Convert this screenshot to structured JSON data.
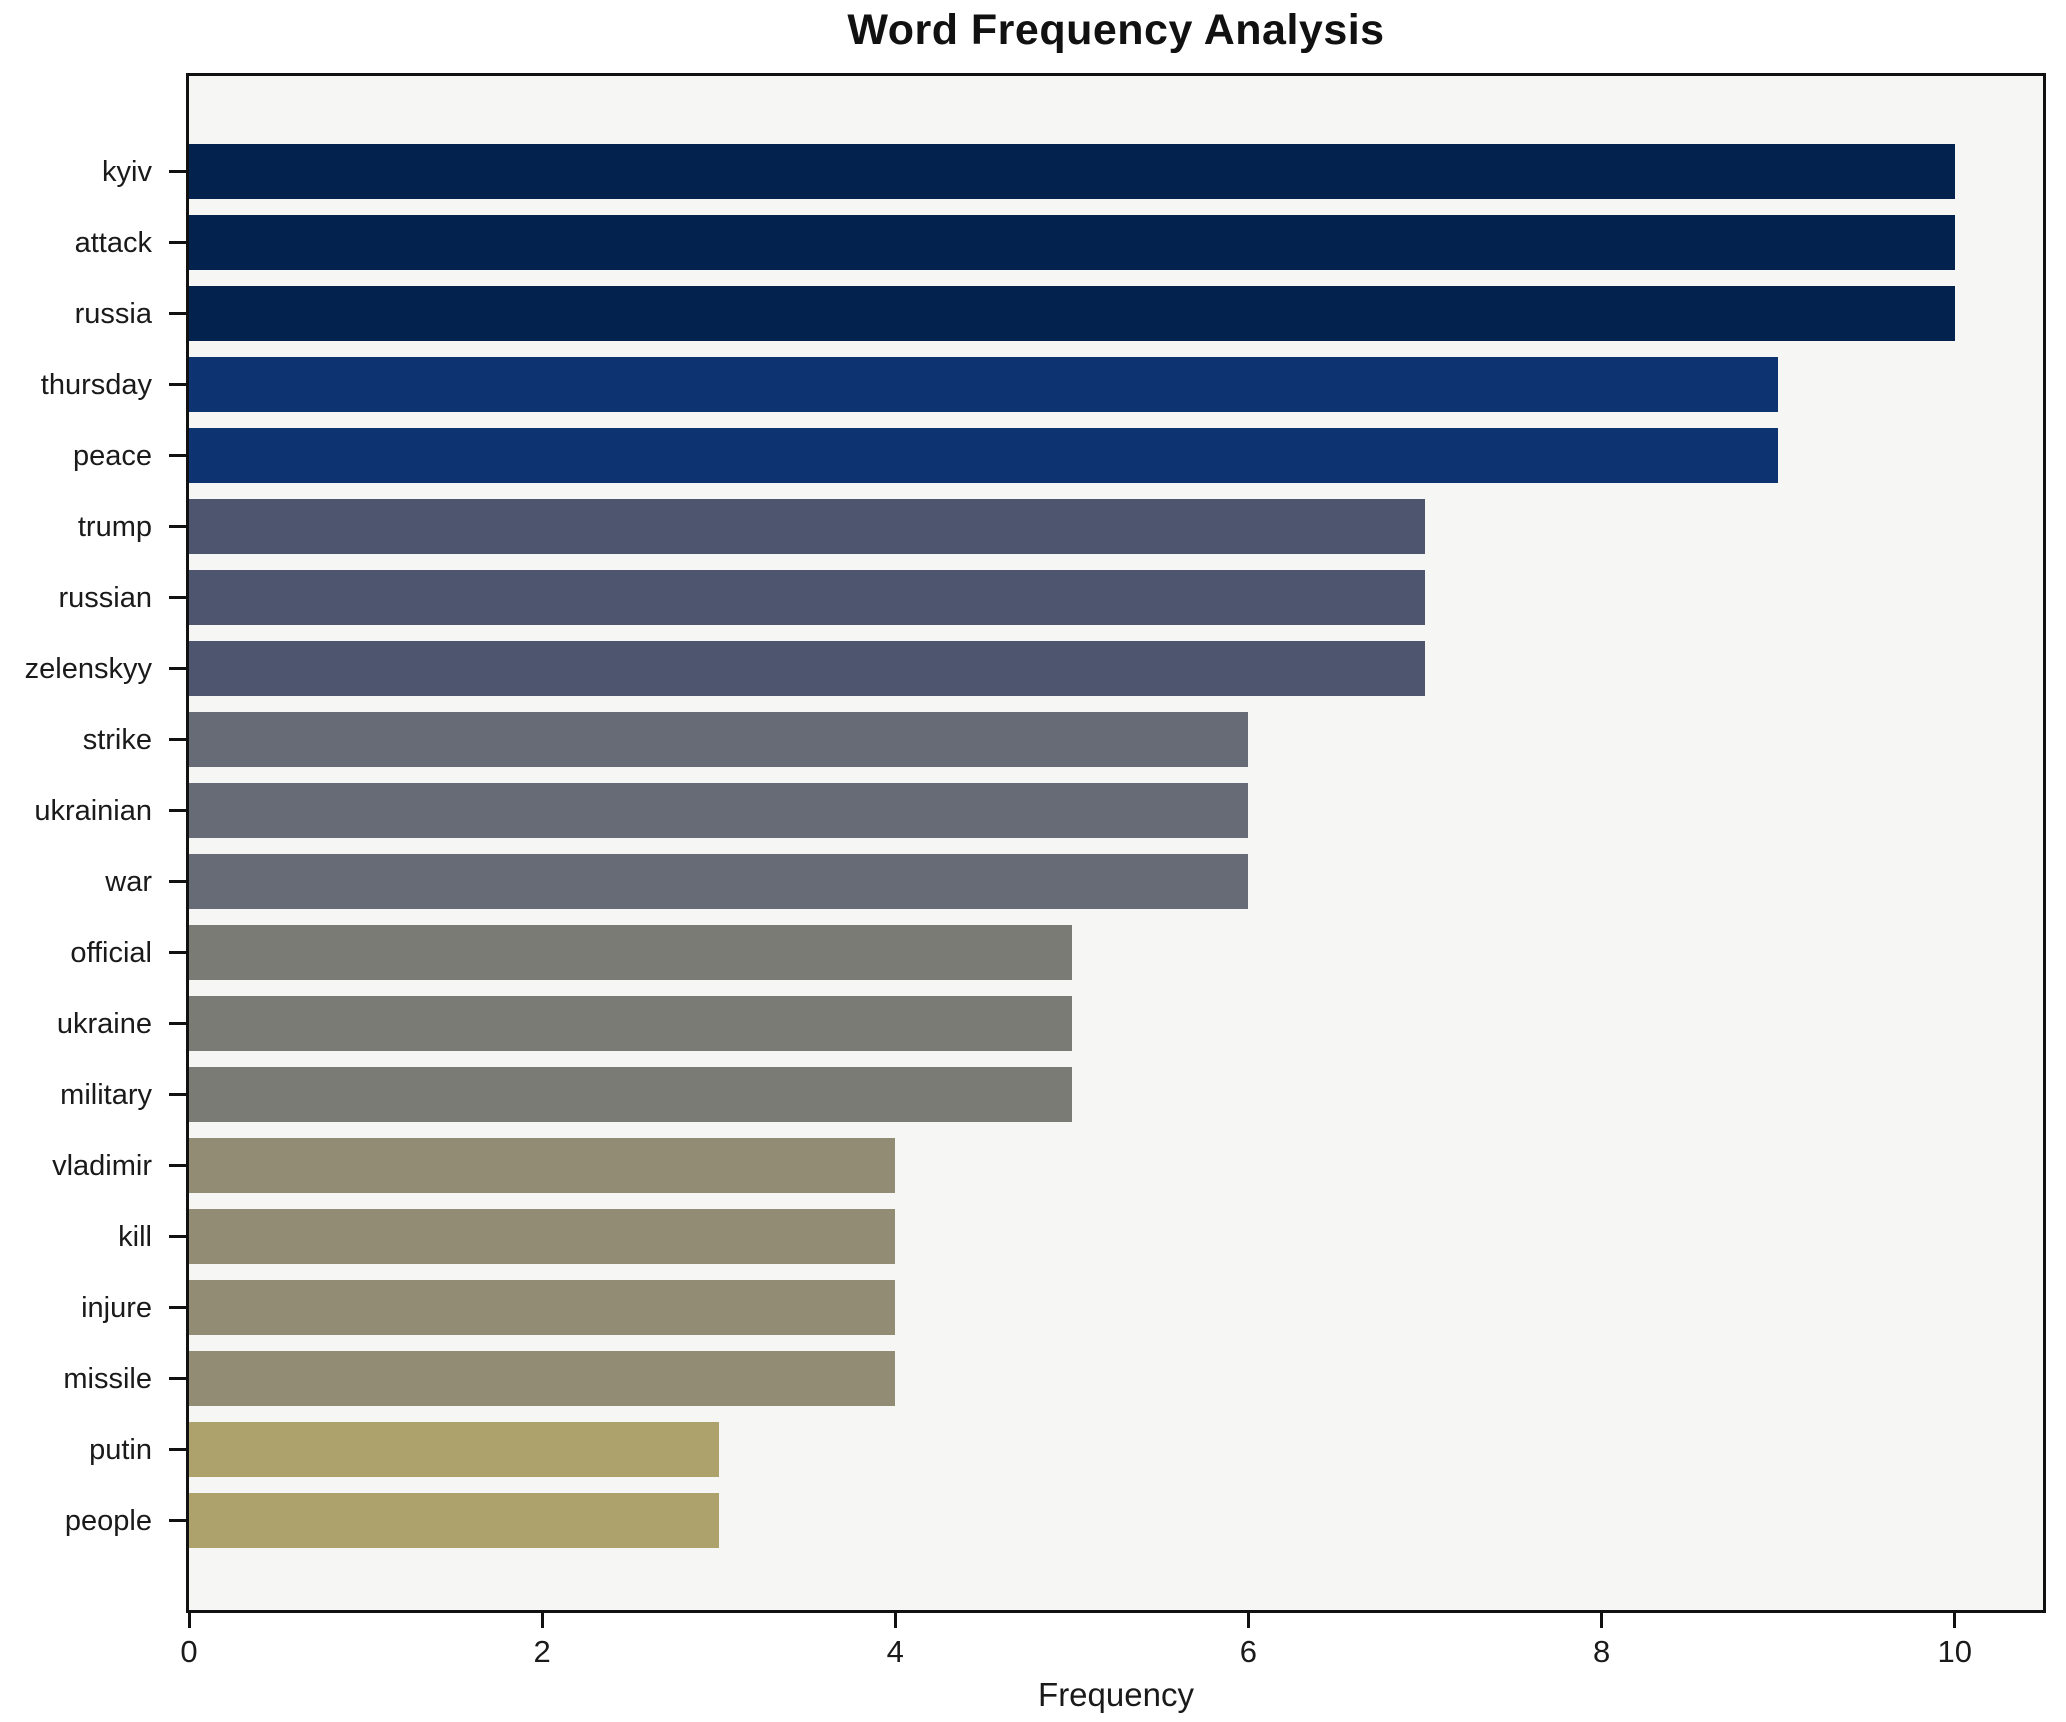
{
  "title": "Word Frequency Analysis",
  "chart_data": {
    "type": "bar",
    "orientation": "horizontal",
    "title": "Word Frequency Analysis",
    "xlabel": "Frequency",
    "ylabel": "",
    "xlim": [
      0,
      10.5
    ],
    "xticks": [
      0,
      2,
      4,
      6,
      8,
      10
    ],
    "grid": false,
    "legend": "none",
    "plot_background": "#f6f6f4",
    "axis_color": "#111111",
    "categories": [
      "kyiv",
      "attack",
      "russia",
      "thursday",
      "peace",
      "trump",
      "russian",
      "zelenskyy",
      "strike",
      "ukrainian",
      "war",
      "official",
      "ukraine",
      "military",
      "vladimir",
      "kill",
      "injure",
      "missile",
      "putin",
      "people"
    ],
    "values": [
      10,
      10,
      10,
      9,
      9,
      7,
      7,
      7,
      6,
      6,
      6,
      5,
      5,
      5,
      4,
      4,
      4,
      4,
      3,
      3
    ],
    "bar_colors": [
      "#03234e",
      "#03234e",
      "#03234e",
      "#0d3470",
      "#0d3470",
      "#4d566e",
      "#4d566e",
      "#4d566e",
      "#666b76",
      "#666b76",
      "#666b76",
      "#7b7b76",
      "#7b7b76",
      "#7b7b76",
      "#938c74",
      "#938c74",
      "#938c74",
      "#938c74",
      "#ada26b",
      "#ada26b"
    ]
  }
}
